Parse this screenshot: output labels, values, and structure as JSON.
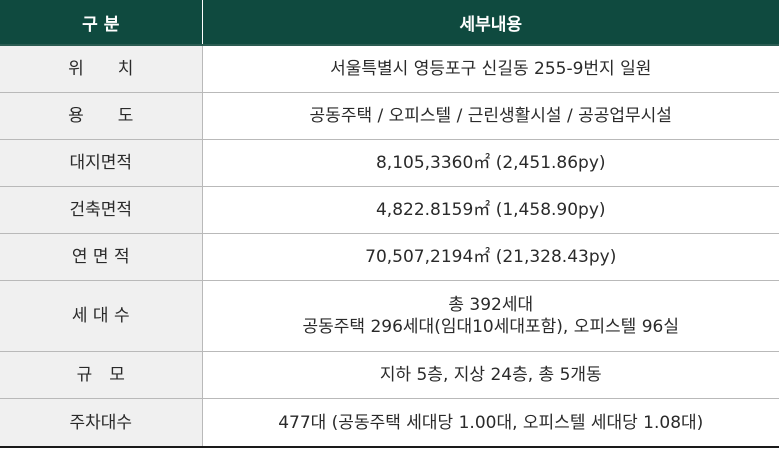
{
  "header": {
    "col1": "구 분",
    "col2": "세부내용"
  },
  "rows": [
    {
      "label": "위　　치",
      "value": "서울특별시 영등포구 신길동 255-9번지 일원"
    },
    {
      "label": "용　　도",
      "value": "공동주택 / 오피스텔 / 근린생활시설 / 공공업무시설"
    },
    {
      "label": "대지면적",
      "value": "8,105,3360㎡ (2,451.86py)"
    },
    {
      "label": "건축면적",
      "value": "4,822.8159㎡ (1,458.90py)"
    },
    {
      "label": "연 면 적",
      "value": "70,507,2194㎡ (21,328.43py)"
    },
    {
      "label": "세 대 수",
      "value_lines": [
        "총 392세대",
        "공동주택 296세대(임대10세대포함), 오피스텔 96실"
      ]
    },
    {
      "label": "규　모",
      "value": "지하 5층, 지상 24층, 총 5개동"
    },
    {
      "label": "주차대수",
      "value": "477대 (공동주택 세대당 1.00대, 오피스텔 세대당 1.08대)"
    }
  ]
}
